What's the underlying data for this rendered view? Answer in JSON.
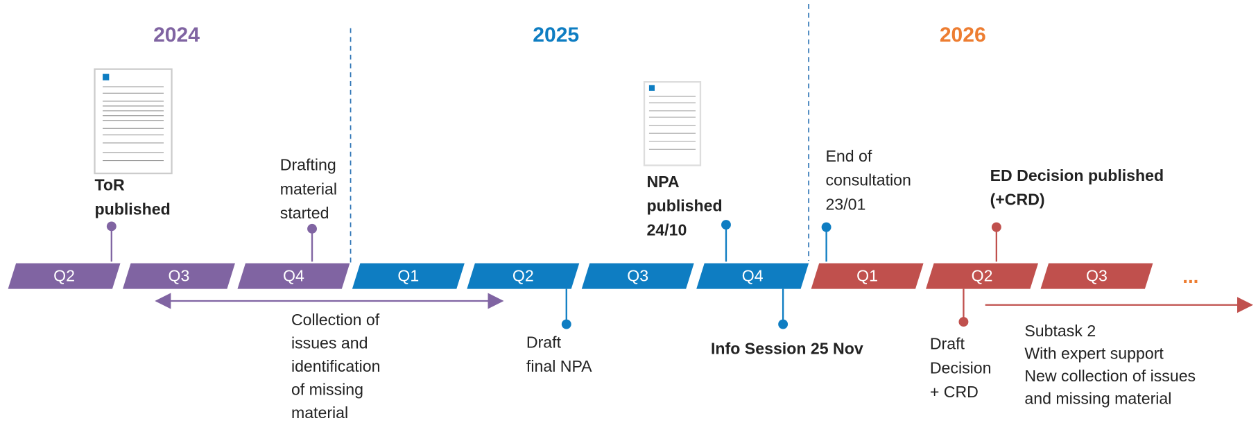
{
  "years": [
    "2024",
    "2025",
    "2026"
  ],
  "quarters": [
    "Q2",
    "Q3",
    "Q4",
    "Q1",
    "Q2",
    "Q3",
    "Q4",
    "Q1",
    "Q2",
    "Q3"
  ],
  "ellipsis": "...",
  "events_above": [
    {
      "lines": [
        "ToR",
        "published"
      ]
    },
    {
      "lines": [
        "Drafting",
        "material",
        "started"
      ]
    },
    {
      "lines": [
        "NPA",
        "published",
        "24/10"
      ]
    },
    {
      "lines": [
        "End of",
        "consultation",
        "23/01"
      ]
    },
    {
      "lines": [
        "ED Decision published",
        "(+CRD)"
      ]
    }
  ],
  "events_below": [
    {
      "lines": [
        "Draft",
        "final NPA"
      ]
    },
    {
      "lines": [
        "Info Session 25 Nov"
      ]
    },
    {
      "lines": [
        "Draft",
        "Decision",
        "+ CRD"
      ]
    }
  ],
  "collection": {
    "lines": [
      "Collection of",
      "issues and",
      "identification",
      "of missing",
      "material"
    ]
  },
  "subtask": {
    "lines": [
      "Subtask 2",
      "With expert support",
      "New collection of issues",
      "and missing material"
    ]
  }
}
